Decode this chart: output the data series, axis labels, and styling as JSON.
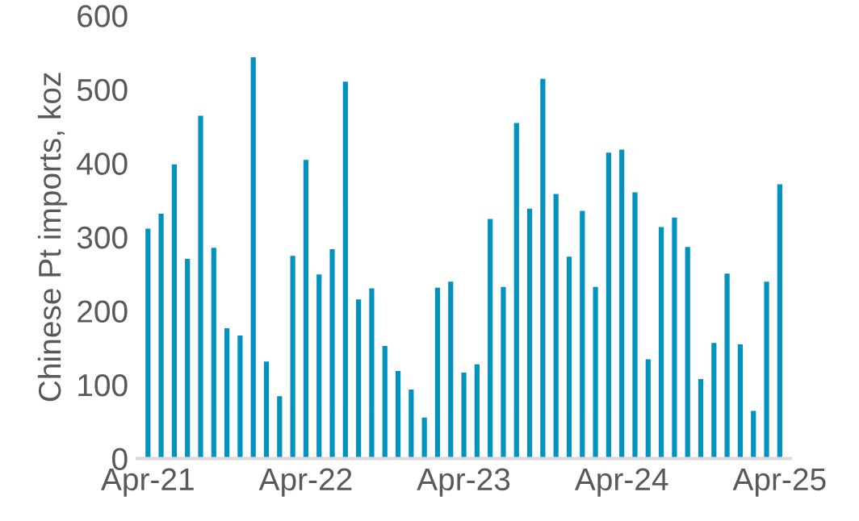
{
  "chart_data": {
    "type": "bar",
    "ylabel": "Chinese Pt imports, koz",
    "categories": [
      "Apr-21",
      null,
      null,
      null,
      null,
      null,
      null,
      null,
      null,
      null,
      null,
      null,
      "Apr-22",
      null,
      null,
      null,
      null,
      null,
      null,
      null,
      null,
      null,
      null,
      null,
      "Apr-23",
      null,
      null,
      null,
      null,
      null,
      null,
      null,
      null,
      null,
      null,
      null,
      "Apr-24",
      null,
      null,
      null,
      null,
      null,
      null,
      null,
      null,
      null,
      null,
      null,
      "Apr-25"
    ],
    "values": [
      313,
      333,
      400,
      272,
      466,
      287,
      178,
      168,
      545,
      133,
      86,
      276,
      406,
      251,
      285,
      512,
      217,
      232,
      154,
      120,
      95,
      57,
      233,
      241,
      118,
      129,
      326,
      234,
      456,
      340,
      516,
      360,
      275,
      337,
      234,
      416,
      420,
      362,
      136,
      315,
      328,
      288,
      109,
      158,
      252,
      156,
      66,
      241,
      373
    ],
    "color": "#0093c0",
    "ylim": [
      0,
      600
    ],
    "yticks": [
      0,
      100,
      200,
      300,
      400,
      500,
      600
    ],
    "grid": false,
    "legend": false
  }
}
